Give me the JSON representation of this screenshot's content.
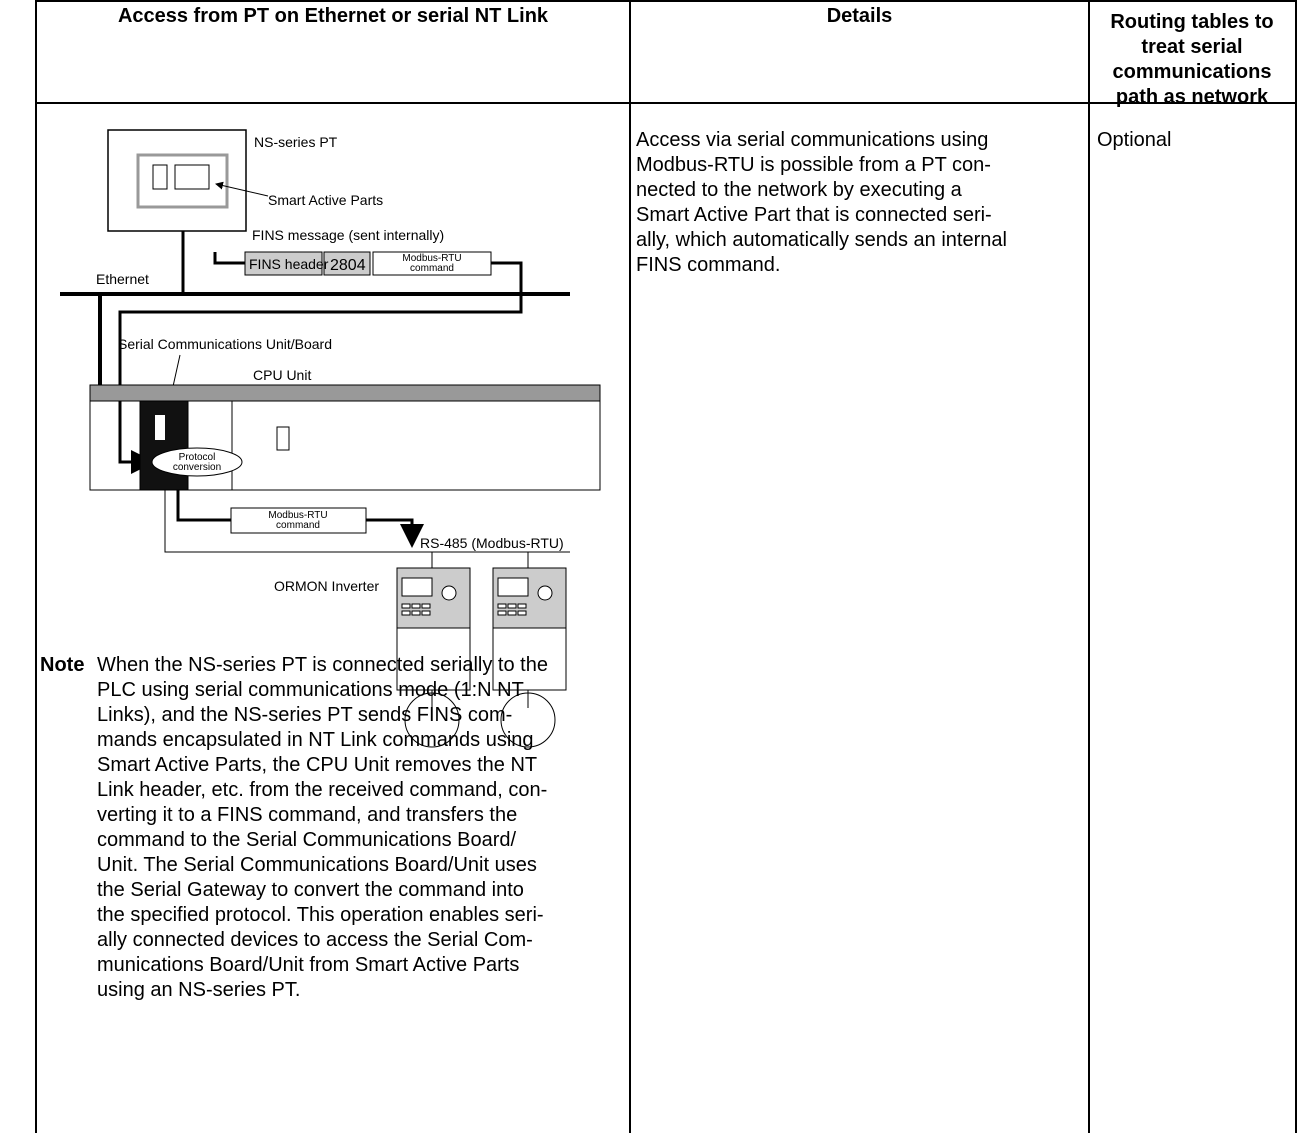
{
  "table": {
    "headers": [
      "Access from PT on Ethernet or serial NT Link",
      "Details",
      "Routing tables to treat serial communications path as network"
    ],
    "diagram": {
      "pt": "NS-series PT",
      "smart_parts": "Smart Active Parts",
      "fins_message": "FINS message (sent internally)",
      "fins_header": "FINS header",
      "fins_code": "2804",
      "modbus_command_top": "Modbus-RTU command",
      "ethernet": "Ethernet",
      "serial_unit": "Serial Communications Unit/Board",
      "cpu_unit": "CPU Unit",
      "protocol": "Protocol conversion",
      "modbus_command_bottom": "Modbus-RTU command",
      "rs485": "RS-485 (Modbus-RTU)",
      "inverter": "ORMON Inverter"
    },
    "note": {
      "label": "Note",
      "lines": [
        "When the NS-series PT is connected serially to the",
        "PLC using serial communications mode (1:N NT",
        "Links), and the NS-series PT sends FINS com-",
        "mands encapsulated in NT Link commands using",
        "Smart Active Parts, the CPU Unit removes the NT",
        "Link header, etc. from the received command, con-",
        "verting it to a FINS command, and transfers the",
        "command to the Serial Communications Board/",
        "Unit. The Serial Communications Board/Unit uses",
        "the Serial Gateway to convert the command into",
        "the specified protocol. This operation enables seri-",
        "ally connected devices to access the Serial Com-",
        "munications Board/Unit from Smart Active Parts",
        "using an NS-series PT."
      ]
    },
    "details": [
      "Access via serial communications using",
      "Modbus-RTU is possible from a PT con-",
      "nected to the network by executing a",
      "Smart Active Part that is connected seri-",
      "ally, which automatically sends an internal",
      "FINS command."
    ],
    "routing": "Optional"
  }
}
